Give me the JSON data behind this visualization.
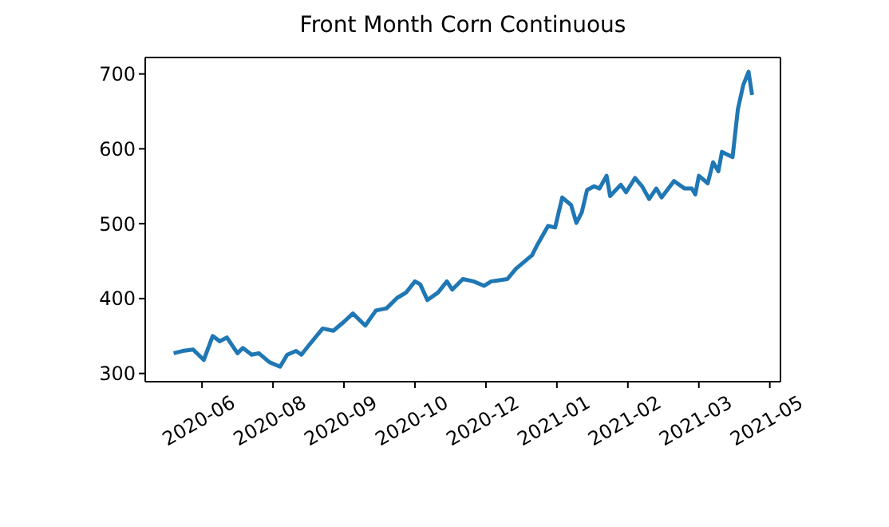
{
  "chart_data": {
    "type": "line",
    "title": "Front Month Corn Continuous",
    "x": [
      "2020-06-08",
      "2020-06-13",
      "2020-06-19",
      "2020-06-25",
      "2020-06-30",
      "2020-07-04",
      "2020-07-08",
      "2020-07-14",
      "2020-07-17",
      "2020-07-22",
      "2020-07-26",
      "2020-08-01",
      "2020-08-07",
      "2020-08-11",
      "2020-08-16",
      "2020-08-19",
      "2020-08-23",
      "2020-08-31",
      "2020-09-06",
      "2020-09-12",
      "2020-09-17",
      "2020-09-24",
      "2020-09-30",
      "2020-10-06",
      "2020-10-12",
      "2020-10-17",
      "2020-10-22",
      "2020-10-25",
      "2020-10-29",
      "2020-11-04",
      "2020-11-09",
      "2020-11-12",
      "2020-11-18",
      "2020-11-24",
      "2020-11-30",
      "2020-12-04",
      "2020-12-07",
      "2020-12-13",
      "2020-12-18",
      "2020-12-27",
      "2020-12-30",
      "2021-01-05",
      "2021-01-09",
      "2021-01-13",
      "2021-01-18",
      "2021-01-21",
      "2021-01-24",
      "2021-01-27",
      "2021-01-31",
      "2021-02-03",
      "2021-02-07",
      "2021-02-09",
      "2021-02-15",
      "2021-02-18",
      "2021-02-23",
      "2021-02-27",
      "2021-03-03",
      "2021-03-07",
      "2021-03-10",
      "2021-03-17",
      "2021-03-23",
      "2021-03-27",
      "2021-03-29",
      "2021-03-31",
      "2021-04-05",
      "2021-04-08",
      "2021-04-11",
      "2021-04-13",
      "2021-04-19",
      "2021-04-22",
      "2021-04-25",
      "2021-04-28",
      "2021-04-30"
    ],
    "series": [
      {
        "color": "#1f77b4",
        "values": [
          327,
          330,
          332,
          318,
          350,
          343,
          348,
          327,
          334,
          325,
          327,
          315,
          309,
          325,
          330,
          325,
          337,
          360,
          357,
          369,
          380,
          364,
          384,
          387,
          401,
          408,
          423,
          419,
          398,
          408,
          423,
          412,
          426,
          423,
          417,
          423,
          424,
          426,
          440,
          458,
          472,
          497,
          495,
          535,
          525,
          501,
          515,
          545,
          550,
          547,
          564,
          537,
          552,
          542,
          561,
          550,
          533,
          547,
          535,
          557,
          547,
          547,
          539,
          564,
          554,
          582,
          570,
          596,
          589,
          653,
          685,
          703,
          672
        ]
      }
    ],
    "xlim": [
      "2020-05-23",
      "2021-05-16"
    ],
    "xticks": [
      {
        "value": "2020-06-24",
        "label": "2020-06"
      },
      {
        "value": "2020-08-03",
        "label": "2020-08"
      },
      {
        "value": "2020-09-12",
        "label": "2020-09"
      },
      {
        "value": "2020-10-22",
        "label": "2020-10"
      },
      {
        "value": "2020-12-01",
        "label": "2020-12"
      },
      {
        "value": "2021-01-10",
        "label": "2021-01"
      },
      {
        "value": "2021-02-19",
        "label": "2021-02"
      },
      {
        "value": "2021-03-31",
        "label": "2021-03"
      },
      {
        "value": "2021-05-10",
        "label": "2021-05"
      }
    ],
    "ylim": [
      289,
      722
    ],
    "yticks": [
      300,
      400,
      500,
      600,
      700
    ],
    "grid": false,
    "legend": false,
    "marker": "none",
    "line_style": "solid"
  }
}
